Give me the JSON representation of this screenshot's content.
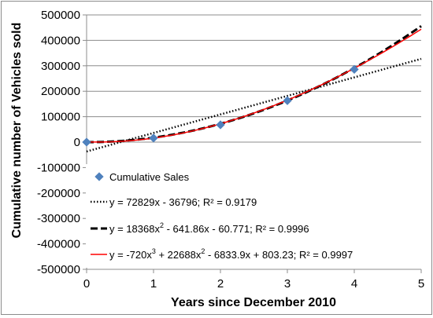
{
  "chart_data": {
    "type": "scatter",
    "xlabel": "Years since December 2010",
    "ylabel": "Cumulative number of Vehicles sold",
    "xlim": [
      0,
      5
    ],
    "ylim": [
      -500000,
      500000
    ],
    "x_ticks": [
      "0",
      "1",
      "2",
      "3",
      "4",
      "5"
    ],
    "y_ticks": [
      "500000",
      "400000",
      "300000",
      "200000",
      "100000",
      "0",
      "-100000",
      "-200000",
      "-300000",
      "-400000",
      "-500000"
    ],
    "grid": "horizontal",
    "legend_placement": "inside-lower",
    "series": [
      {
        "name": "Cumulative Sales",
        "kind": "markers",
        "marker": "diamond",
        "color": "#4f81bd",
        "x": [
          0,
          1,
          2,
          3,
          4
        ],
        "y": [
          0,
          16000,
          68000,
          163000,
          286000
        ]
      },
      {
        "kind": "line",
        "style": "dotted",
        "color": "#000000",
        "fit": "linear",
        "coefficients": {
          "a": 72829,
          "b": -36796
        },
        "legend_label": "y = 72829x - 36796; R² = 0.9179"
      },
      {
        "kind": "line",
        "style": "dashed",
        "color": "#000000",
        "fit": "quadratic",
        "coefficients": {
          "a": 18368,
          "b": -641.86,
          "c": -60.771
        },
        "legend_parts": [
          "y = 18368x",
          "2",
          " - 641.86x - 60.771; R² = 0.9996"
        ]
      },
      {
        "kind": "line",
        "style": "solid",
        "color": "#ff0000",
        "fit": "cubic",
        "coefficients": {
          "a": -720,
          "b": 22688,
          "c": -6833.9,
          "d": 803.23
        },
        "legend_parts": [
          "y = -720x",
          "3",
          " + 22688x",
          "2",
          " - 6833.9x + 803.23; R² = 0.9997"
        ]
      }
    ]
  }
}
